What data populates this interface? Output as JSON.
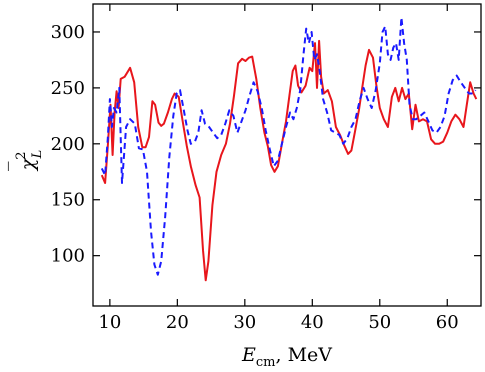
{
  "chart_data": {
    "type": "line",
    "xlabel_main": "E",
    "xlabel_sub": "cm",
    "xlabel_unit": ", MeV",
    "ylabel_main": "χ",
    "ylabel_bar": "‾",
    "ylabel_sup": "2",
    "ylabel_sub": "L",
    "xlim": [
      7.5,
      65
    ],
    "ylim": [
      55,
      325
    ],
    "xticks": [
      10,
      20,
      30,
      40,
      50,
      60
    ],
    "yticks": [
      100,
      150,
      200,
      250,
      300
    ],
    "grid": false,
    "legend": "none",
    "series": [
      {
        "color": "#e8161c",
        "style": "solid",
        "points": [
          [
            8.8,
            172
          ],
          [
            9.3,
            165
          ],
          [
            9.7,
            198
          ],
          [
            10.1,
            235
          ],
          [
            10.4,
            190
          ],
          [
            10.7,
            228
          ],
          [
            11.0,
            247
          ],
          [
            11.3,
            232
          ],
          [
            11.6,
            258
          ],
          [
            12.2,
            260
          ],
          [
            13.0,
            268
          ],
          [
            13.6,
            255
          ],
          [
            14.2,
            215
          ],
          [
            14.8,
            197
          ],
          [
            15.3,
            197
          ],
          [
            15.8,
            206
          ],
          [
            16.3,
            238
          ],
          [
            16.7,
            235
          ],
          [
            17.2,
            219
          ],
          [
            17.6,
            216
          ],
          [
            18.0,
            218
          ],
          [
            18.6,
            228
          ],
          [
            19.2,
            240
          ],
          [
            19.6,
            245
          ],
          [
            20.2,
            242
          ],
          [
            20.8,
            220
          ],
          [
            21.4,
            198
          ],
          [
            22.0,
            180
          ],
          [
            22.7,
            163
          ],
          [
            23.3,
            152
          ],
          [
            23.8,
            105
          ],
          [
            24.2,
            78
          ],
          [
            24.6,
            95
          ],
          [
            25.2,
            145
          ],
          [
            25.8,
            175
          ],
          [
            26.5,
            190
          ],
          [
            27.2,
            200
          ],
          [
            27.8,
            218
          ],
          [
            28.4,
            243
          ],
          [
            29.0,
            272
          ],
          [
            29.6,
            276
          ],
          [
            30.1,
            274
          ],
          [
            30.6,
            277
          ],
          [
            31.1,
            278
          ],
          [
            31.7,
            258
          ],
          [
            32.3,
            232
          ],
          [
            32.9,
            210
          ],
          [
            33.4,
            198
          ],
          [
            33.9,
            181
          ],
          [
            34.4,
            175
          ],
          [
            34.9,
            180
          ],
          [
            35.5,
            200
          ],
          [
            36.1,
            220
          ],
          [
            36.6,
            243
          ],
          [
            37.1,
            265
          ],
          [
            37.5,
            270
          ],
          [
            37.9,
            252
          ],
          [
            38.4,
            246
          ],
          [
            39.0,
            252
          ],
          [
            39.6,
            268
          ],
          [
            40.0,
            265
          ],
          [
            40.4,
            290
          ],
          [
            40.7,
            250
          ],
          [
            41.0,
            292
          ],
          [
            41.3,
            260
          ],
          [
            41.7,
            245
          ],
          [
            42.3,
            248
          ],
          [
            42.9,
            238
          ],
          [
            43.5,
            215
          ],
          [
            44.1,
            208
          ],
          [
            44.7,
            199
          ],
          [
            45.3,
            191
          ],
          [
            45.8,
            194
          ],
          [
            46.3,
            210
          ],
          [
            46.9,
            230
          ],
          [
            47.4,
            250
          ],
          [
            47.9,
            270
          ],
          [
            48.4,
            284
          ],
          [
            49.0,
            277
          ],
          [
            49.5,
            252
          ],
          [
            50.0,
            232
          ],
          [
            50.6,
            222
          ],
          [
            51.2,
            215
          ],
          [
            51.8,
            242
          ],
          [
            52.3,
            250
          ],
          [
            52.8,
            238
          ],
          [
            53.3,
            250
          ],
          [
            53.8,
            240
          ],
          [
            54.3,
            245
          ],
          [
            54.8,
            213
          ],
          [
            55.3,
            235
          ],
          [
            55.8,
            220
          ],
          [
            56.4,
            222
          ],
          [
            57.0,
            220
          ],
          [
            57.6,
            204
          ],
          [
            58.2,
            200
          ],
          [
            58.8,
            200
          ],
          [
            59.4,
            202
          ],
          [
            60.0,
            210
          ],
          [
            60.6,
            220
          ],
          [
            61.2,
            226
          ],
          [
            61.8,
            222
          ],
          [
            62.4,
            215
          ],
          [
            62.9,
            235
          ],
          [
            63.4,
            255
          ],
          [
            63.9,
            245
          ],
          [
            64.3,
            240
          ]
        ]
      },
      {
        "color": "#1a1aff",
        "style": "dashed",
        "points": [
          [
            8.8,
            178
          ],
          [
            9.3,
            172
          ],
          [
            9.7,
            205
          ],
          [
            10.0,
            240
          ],
          [
            10.3,
            215
          ],
          [
            10.6,
            232
          ],
          [
            11.0,
            228
          ],
          [
            11.4,
            250
          ],
          [
            11.8,
            165
          ],
          [
            12.4,
            215
          ],
          [
            13.0,
            222
          ],
          [
            13.7,
            218
          ],
          [
            14.3,
            196
          ],
          [
            14.9,
            195
          ],
          [
            15.5,
            175
          ],
          [
            16.1,
            122
          ],
          [
            16.6,
            92
          ],
          [
            17.1,
            83
          ],
          [
            17.6,
            95
          ],
          [
            18.2,
            135
          ],
          [
            18.8,
            188
          ],
          [
            19.4,
            225
          ],
          [
            19.9,
            245
          ],
          [
            20.4,
            248
          ],
          [
            20.9,
            232
          ],
          [
            21.5,
            212
          ],
          [
            22.0,
            200
          ],
          [
            22.6,
            202
          ],
          [
            23.1,
            210
          ],
          [
            23.6,
            230
          ],
          [
            24.1,
            218
          ],
          [
            24.7,
            215
          ],
          [
            25.3,
            210
          ],
          [
            25.9,
            205
          ],
          [
            26.5,
            208
          ],
          [
            27.1,
            218
          ],
          [
            27.7,
            230
          ],
          [
            28.3,
            225
          ],
          [
            28.9,
            210
          ],
          [
            29.5,
            220
          ],
          [
            30.1,
            230
          ],
          [
            30.7,
            243
          ],
          [
            31.3,
            255
          ],
          [
            31.9,
            247
          ],
          [
            32.5,
            232
          ],
          [
            33.1,
            212
          ],
          [
            33.7,
            195
          ],
          [
            34.3,
            180
          ],
          [
            34.9,
            185
          ],
          [
            35.5,
            200
          ],
          [
            36.1,
            215
          ],
          [
            36.7,
            228
          ],
          [
            37.2,
            222
          ],
          [
            37.7,
            232
          ],
          [
            38.2,
            248
          ],
          [
            38.7,
            280
          ],
          [
            39.1,
            303
          ],
          [
            39.5,
            290
          ],
          [
            39.9,
            300
          ],
          [
            40.3,
            275
          ],
          [
            40.7,
            280
          ],
          [
            41.1,
            265
          ],
          [
            41.6,
            240
          ],
          [
            42.2,
            228
          ],
          [
            42.8,
            212
          ],
          [
            43.4,
            210
          ],
          [
            44.0,
            208
          ],
          [
            44.6,
            200
          ],
          [
            45.2,
            205
          ],
          [
            45.8,
            215
          ],
          [
            46.4,
            222
          ],
          [
            47.0,
            238
          ],
          [
            47.6,
            250
          ],
          [
            48.2,
            240
          ],
          [
            48.8,
            232
          ],
          [
            49.4,
            248
          ],
          [
            50.0,
            272
          ],
          [
            50.4,
            300
          ],
          [
            50.8,
            305
          ],
          [
            51.2,
            280
          ],
          [
            51.6,
            275
          ],
          [
            52.0,
            286
          ],
          [
            52.4,
            290
          ],
          [
            52.8,
            275
          ],
          [
            53.2,
            313
          ],
          [
            53.6,
            290
          ],
          [
            54.0,
            275
          ],
          [
            54.4,
            235
          ],
          [
            54.9,
            222
          ],
          [
            55.4,
            222
          ],
          [
            56.0,
            225
          ],
          [
            56.6,
            228
          ],
          [
            57.2,
            220
          ],
          [
            57.8,
            212
          ],
          [
            58.4,
            210
          ],
          [
            59.0,
            215
          ],
          [
            59.6,
            225
          ],
          [
            60.2,
            245
          ],
          [
            60.8,
            257
          ],
          [
            61.4,
            261
          ],
          [
            62.0,
            255
          ],
          [
            62.6,
            250
          ],
          [
            63.2,
            245
          ],
          [
            63.8,
            245
          ],
          [
            64.2,
            248
          ]
        ]
      }
    ]
  }
}
